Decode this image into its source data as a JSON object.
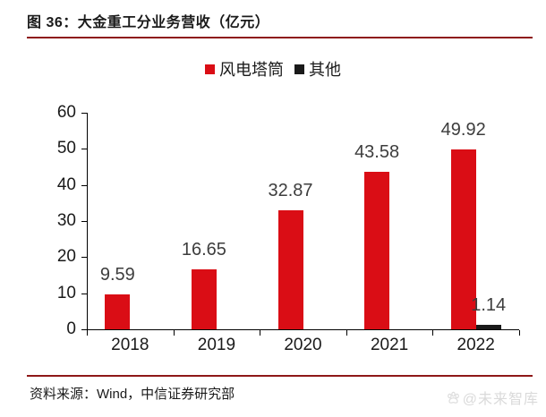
{
  "figure": {
    "title": "图 36：大金重工分业务营收（亿元）",
    "source": "资料来源：Wind，中信证券研究部",
    "watermark": "@未来智库"
  },
  "colors": {
    "series_red": "#da0d15",
    "series_dark": "#1a1a1a",
    "rule_red": "#8e1818",
    "value_label_gray": "#3d3d3d",
    "watermark_gray": "#dadada"
  },
  "chart_data": {
    "type": "bar",
    "title": "图 36：大金重工分业务营收（亿元）",
    "categories": [
      "2018",
      "2019",
      "2020",
      "2021",
      "2022"
    ],
    "series": [
      {
        "name": "风电塔筒",
        "color": "#da0d15",
        "values": [
          9.59,
          16.65,
          32.87,
          43.58,
          49.92
        ]
      },
      {
        "name": "其他",
        "color": "#1a1a1a",
        "values": [
          null,
          null,
          null,
          null,
          1.14
        ]
      }
    ],
    "xlabel": "",
    "ylabel": "",
    "ylim": [
      0,
      60
    ],
    "yticks": [
      0,
      10,
      20,
      30,
      40,
      50,
      60
    ],
    "grid": false,
    "legend_position": "top-center",
    "data_labels": true
  }
}
